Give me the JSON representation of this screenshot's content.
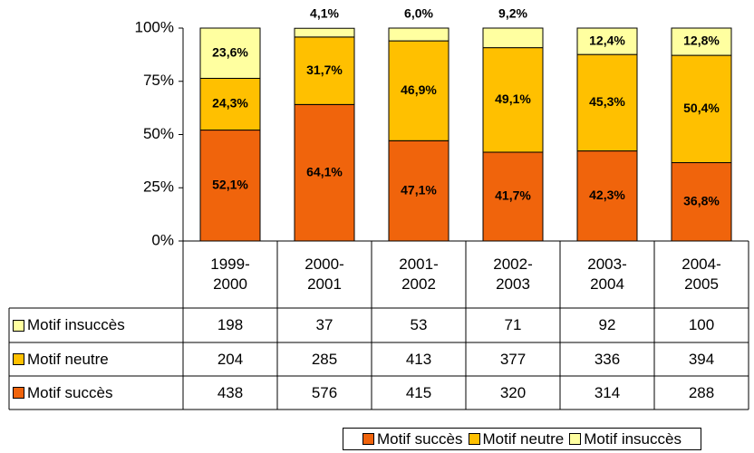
{
  "chart_data": {
    "type": "stacked_bar_percent",
    "categories": [
      "1999-\n2000",
      "2000-\n2001",
      "2001-\n2002",
      "2002-\n2003",
      "2003-\n2004",
      "2004-\n2005"
    ],
    "series": [
      {
        "name": "Motif succès",
        "color": "#f0640c",
        "values": [
          52.1,
          64.1,
          47.1,
          41.7,
          42.3,
          36.8
        ],
        "value_labels": [
          "52,1%",
          "64,1%",
          "47,1%",
          "41,7%",
          "42,3%",
          "36,8%"
        ],
        "counts": [
          438,
          576,
          415,
          320,
          314,
          288
        ]
      },
      {
        "name": "Motif neutre",
        "color": "#ffc000",
        "values": [
          24.3,
          31.7,
          46.9,
          49.1,
          45.3,
          50.4
        ],
        "value_labels": [
          "24,3%",
          "31,7%",
          "46,9%",
          "49,1%",
          "45,3%",
          "50,4%"
        ],
        "counts": [
          204,
          285,
          413,
          377,
          336,
          394
        ]
      },
      {
        "name": "Motif insuccès",
        "color": "#ffffa0",
        "values": [
          23.6,
          4.1,
          6.0,
          9.2,
          12.4,
          12.8
        ],
        "value_labels": [
          "23,6%",
          "4,1%",
          "6,0%",
          "9,2%",
          "12,4%",
          "12,8%"
        ],
        "counts": [
          198,
          37,
          53,
          71,
          92,
          100
        ]
      }
    ],
    "ylim": [
      0,
      100
    ],
    "yticks": [
      {
        "value": 0,
        "label": "0%"
      },
      {
        "value": 25,
        "label": "25%"
      },
      {
        "value": 50,
        "label": "50%"
      },
      {
        "value": 75,
        "label": "75%"
      },
      {
        "value": 100,
        "label": "100%"
      }
    ],
    "grid": false,
    "legend": "bottom"
  }
}
